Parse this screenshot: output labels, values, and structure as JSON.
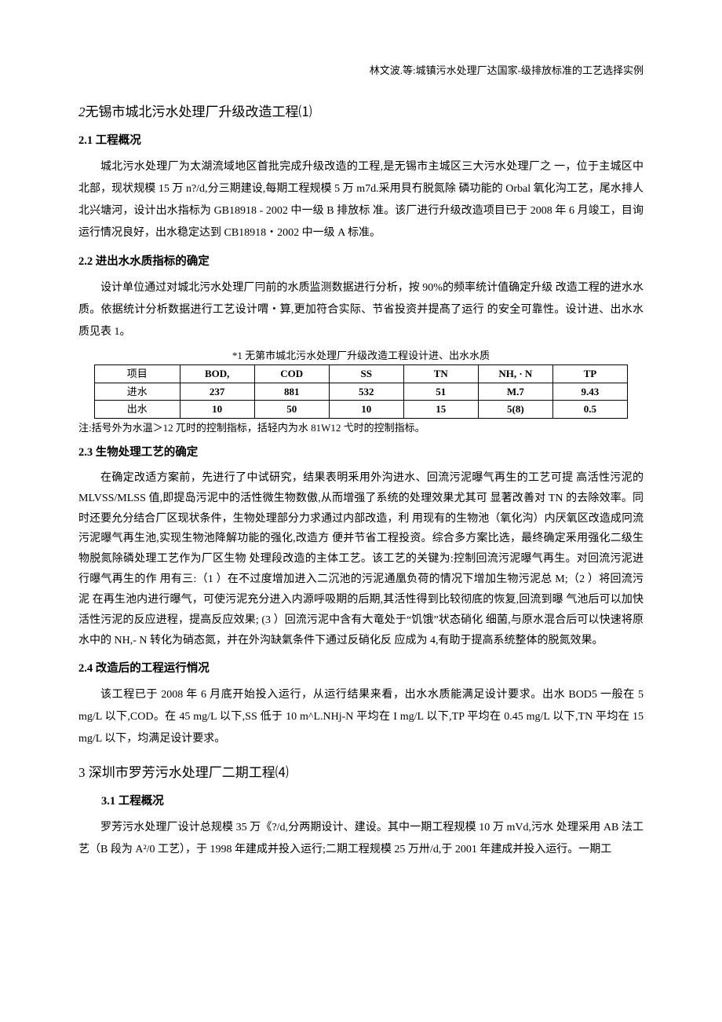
{
  "header": {
    "right": "林文波.等:城镇污水处理厂达国家-级排放标准的工艺选择实例"
  },
  "sec2": {
    "num": "2",
    "title": "无锡市城北污水处理厂升级改造工程⑴",
    "s21": {
      "heading": "2.1 工程概况",
      "p": "城北污水处理厂为太湖流域地区首批完成升级改造的工程,是无锡市主城区三大污水处理厂之 一，位于主城区中北部，现状规模 15 万 n?/d,分三期建设,每期工程规模 5 万 m7d.采用貝冇脱氮除 磷功能的 Orbal 氧化沟工艺，尾水排人北兴塘河，设计出水指标为 GB18918 - 2002 中一级 B 排放标 准。该厂进行升级改造项目已于 2008 年 6 月竣工，目询运行情况良好，出水稳定达到 CB18918・2002 中一级 A 标准。"
    },
    "s22": {
      "heading": "2.2 进出水水质指标的确定",
      "p": "设计单位通过对城北污水处理厂冃前的水质监测数据进行分析，按 90%的频率统计值确定升级 改造工程的进水水质。依据统计分析数据进行工艺设计喟・算,更加符合实际、节省投资并提髙了运行 的安全可靠性。设计进、出水水质见表 1。",
      "table": {
        "caption": "*1 无第市城北污水处理厂升级改造工程设计进、出水水质",
        "columns": [
          "项目",
          "BOD,",
          "COD",
          "SS",
          "TN",
          "NH, · N",
          "TP"
        ],
        "col_bold": [
          false,
          true,
          true,
          true,
          true,
          true,
          true
        ],
        "rows": [
          {
            "label": "进水",
            "cells": [
              "237",
              "881",
              "532",
              "51",
              "M.7",
              "9.43"
            ],
            "bold": [
              true,
              true,
              true,
              true,
              true,
              true
            ]
          },
          {
            "label": "出水",
            "cells": [
              "10",
              "50",
              "10",
              "15",
              "5(8)",
              "0.5"
            ],
            "bold": [
              true,
              true,
              true,
              true,
              true,
              true
            ]
          }
        ],
        "note": "注:括号外为水温＞12 兀时的控制指标，括轻内为水 81W12 弋时的控制指标。",
        "col_widths": [
          "16%",
          "14%",
          "14%",
          "14%",
          "14%",
          "14%",
          "14%"
        ],
        "border_color": "#000000",
        "background_color": "#ffffff",
        "font_size": 13
      }
    },
    "s23": {
      "heading": "2.3 生物处理工艺的确定",
      "p": "在确定改适方案前，先进行了中试研究，结果表明釆用外沟进水、回流污泥曝气再生的工艺可提 高活性污泥的 MLVSS/MLSS 值,即提岛污泥中的活性微生物数傲,从而增强了系统的处理效果尤其可 显著改善对 TN 的去除效率。同时还要允分结合厂区现状条件，生物处理部分力求通过内部改造，利 用现有的生物池（氧化沟）内厌氧区改造成冋流污泥曝气再生池,实现生物池降解功能的强化,改造方 便并节省工程投资。综合多方案比选，最终确定釆用强化二级生物脱氮除磷处理工艺作为厂区生物 处理段改造的主体工艺。该工艺的关键为:控制回流污泥曝气再生。对回流污泥进行曝气再生的作 用有三:（1 ）在不过度增加进入二沉池的污泥通凰负荷的情况下增加生物污泥总 M;（2 ）将回流污泥 在再生池内进行曝气，可使污泥充分进入内源呼吸期的后期,其活性得到比较彻底的恢复,回流到曝 气池后可以加快活性污泥的反应进程，提高反应效果; (3 ）回流污泥中含有大竜处于“饥饿”状态硝化 细菌,与原水混合后可以快速将原水中的 NH,- N 转化为硝态氮，并在外沟缺氣条件下通过反硝化反 应成为 4,有助于提高系统整体的脱氮效果。"
    },
    "s24": {
      "heading": "2.4 改造后的工程运行悄况",
      "p": "该工程已于 2008 年 6 月底开始投入运行，从运行结果来看，出水水质能满足设计要求。出水 BOD5 一般在 5 mg/L 以下,COD。在 45 mg/L 以下,SS 低于 10 m^L.NHj-N 平均在 I mg/L 以下,TP 平均在 0.45 mg/L 以下,TN 平均在 15 mg/L 以下，均满足设计要求。"
    }
  },
  "sec3": {
    "num": "3",
    "title": "深圳市罗芳污水处理厂二期工程⑷",
    "s31": {
      "heading": "3.1 工程概况",
      "p": "罗芳污水处理厂设计总规模 35 万《?/d,分两期设计、建设。其中一期工程规模 10 万 mVd,污水 处理采用 AB 法工艺（B 段为 A²/0 工艺），于 1998 年建成并投入运行;二期工程规模 25 万卅/d,于 2001 年建成并投入运行。一期工"
    }
  },
  "styles": {
    "page_background": "#ffffff",
    "text_color": "#000000",
    "body_font_size": 14,
    "body_line_height": 2.0,
    "h2_font_size": 17,
    "h3_font_size": 14.5,
    "caption_font_size": 13,
    "note_font_size": 13
  }
}
